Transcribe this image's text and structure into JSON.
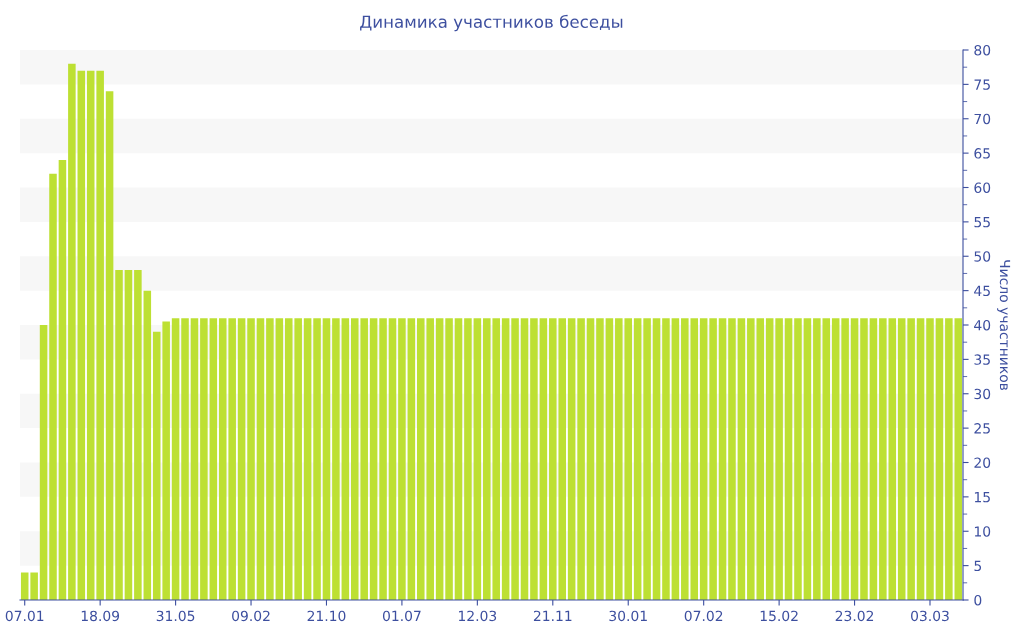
{
  "chart_data": {
    "type": "bar",
    "title": "Динамика участников беседы",
    "ylabel": "Число участников",
    "categories": [
      "07.01",
      null,
      null,
      null,
      null,
      null,
      null,
      null,
      "18.09",
      null,
      null,
      null,
      null,
      null,
      null,
      null,
      "31.05",
      null,
      null,
      null,
      null,
      null,
      null,
      null,
      "09.02",
      null,
      null,
      null,
      null,
      null,
      null,
      null,
      "21.10",
      null,
      null,
      null,
      null,
      null,
      null,
      null,
      "01.07",
      null,
      null,
      null,
      null,
      null,
      null,
      null,
      "12.03",
      null,
      null,
      null,
      null,
      null,
      null,
      null,
      "21.11",
      null,
      null,
      null,
      null,
      null,
      null,
      null,
      "30.01",
      null,
      null,
      null,
      null,
      null,
      null,
      null,
      "07.02",
      null,
      null,
      null,
      null,
      null,
      null,
      null,
      "15.02",
      null,
      null,
      null,
      null,
      null,
      null,
      null,
      "23.02",
      null,
      null,
      null,
      null,
      null,
      null,
      null,
      "03.03",
      null,
      null,
      null
    ],
    "values": [
      4,
      4,
      40,
      62,
      64,
      78,
      77,
      77,
      77,
      74,
      48,
      48,
      48,
      45,
      39,
      40.5,
      41,
      41,
      41,
      41,
      41,
      41,
      41,
      41,
      41,
      41,
      41,
      41,
      41,
      41,
      41,
      41,
      41,
      41,
      41,
      41,
      41,
      41,
      41,
      41,
      41,
      41,
      41,
      41,
      41,
      41,
      41,
      41,
      41,
      41,
      41,
      41,
      41,
      41,
      41,
      41,
      41,
      41,
      41,
      41,
      41,
      41,
      41,
      41,
      41,
      41,
      41,
      41,
      41,
      41,
      41,
      41,
      41,
      41,
      41,
      41,
      41,
      41,
      41,
      41,
      41,
      41,
      41,
      41,
      41,
      41,
      41,
      41,
      41,
      41,
      41,
      41,
      41,
      41,
      41,
      41,
      41,
      41,
      41,
      41
    ],
    "color": "#bde033",
    "ylim": [
      0,
      80
    ],
    "yticks": [
      0,
      5,
      10,
      15,
      20,
      25,
      30,
      35,
      40,
      45,
      50,
      55,
      60,
      65,
      70,
      75,
      80
    ],
    "bands": [
      {
        "axis": "y",
        "from": 5,
        "to": 10,
        "color": "#f7f7f7"
      },
      {
        "axis": "y",
        "from": 15,
        "to": 20,
        "color": "#f7f7f7"
      },
      {
        "axis": "y",
        "from": 25,
        "to": 30,
        "color": "#f7f7f7"
      },
      {
        "axis": "y",
        "from": 35,
        "to": 40,
        "color": "#f7f7f7"
      },
      {
        "axis": "y",
        "from": 45,
        "to": 50,
        "color": "#f7f7f7"
      },
      {
        "axis": "y",
        "from": 55,
        "to": 60,
        "color": "#f7f7f7"
      },
      {
        "axis": "y",
        "from": 65,
        "to": 70,
        "color": "#f7f7f7"
      },
      {
        "axis": "y",
        "from": 75,
        "to": 80,
        "color": "#f7f7f7"
      }
    ],
    "grid": false,
    "legend": false
  }
}
